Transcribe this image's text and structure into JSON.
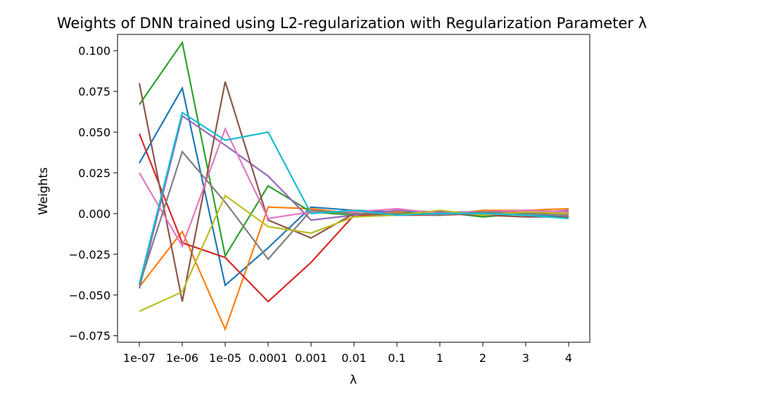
{
  "chart_data": {
    "type": "line",
    "title": "Weights of DNN trained using L2-regularization with Regularization Parameter λ",
    "xlabel": "λ",
    "ylabel": "Weights",
    "categories": [
      "1e-07",
      "1e-06",
      "1e-05",
      "0.0001",
      "0.001",
      "0.01",
      "0.1",
      "1",
      "2",
      "3",
      "4"
    ],
    "yticks": [
      "−0.075",
      "−0.050",
      "−0.025",
      "0.000",
      "0.025",
      "0.050",
      "0.075",
      "0.100"
    ],
    "ytick_values": [
      -0.075,
      -0.05,
      -0.025,
      0.0,
      0.025,
      0.05,
      0.075,
      0.1
    ],
    "ylim": [
      -0.079,
      0.11
    ],
    "grid": false,
    "series": [
      {
        "color": "#1f77b4",
        "values": [
          0.031,
          0.077,
          -0.044,
          -0.021,
          0.004,
          0.002,
          0.001,
          0.0,
          0.001,
          -0.001,
          -0.002
        ]
      },
      {
        "color": "#ff7f0e",
        "values": [
          -0.045,
          -0.011,
          -0.071,
          0.004,
          0.003,
          0.0,
          0.001,
          -0.001,
          0.002,
          0.002,
          0.003
        ]
      },
      {
        "color": "#2ca02c",
        "values": [
          0.067,
          0.105,
          -0.026,
          0.017,
          0.001,
          -0.001,
          0.0,
          0.001,
          -0.002,
          0.0,
          0.001
        ]
      },
      {
        "color": "#d62728",
        "values": [
          0.049,
          -0.018,
          -0.027,
          -0.054,
          -0.03,
          -0.001,
          -0.001,
          -0.001,
          0.0,
          0.001,
          0.0
        ]
      },
      {
        "color": "#9467bd",
        "values": [
          -0.046,
          0.06,
          0.042,
          0.023,
          -0.004,
          -0.001,
          0.002,
          0.001,
          0.001,
          0.0,
          0.002
        ]
      },
      {
        "color": "#8c564b",
        "values": [
          0.08,
          -0.054,
          0.081,
          -0.004,
          -0.015,
          0.0,
          -0.001,
          0.0,
          -0.001,
          -0.002,
          -0.002
        ]
      },
      {
        "color": "#e377c2",
        "values": [
          0.025,
          -0.02,
          0.052,
          -0.003,
          0.001,
          0.001,
          0.003,
          0.0,
          0.001,
          0.002,
          0.001
        ]
      },
      {
        "color": "#7f7f7f",
        "values": [
          -0.044,
          0.038,
          0.007,
          -0.028,
          0.002,
          0.0,
          0.0,
          -0.001,
          0.001,
          0.0,
          -0.001
        ]
      },
      {
        "color": "#bcbd22",
        "values": [
          -0.06,
          -0.048,
          0.011,
          -0.008,
          -0.012,
          -0.002,
          -0.001,
          0.002,
          -0.001,
          0.001,
          0.0
        ]
      },
      {
        "color": "#17becf",
        "values": [
          -0.043,
          0.062,
          0.045,
          0.05,
          0.0,
          0.002,
          -0.001,
          0.0,
          0.0,
          -0.001,
          -0.003
        ]
      }
    ]
  }
}
